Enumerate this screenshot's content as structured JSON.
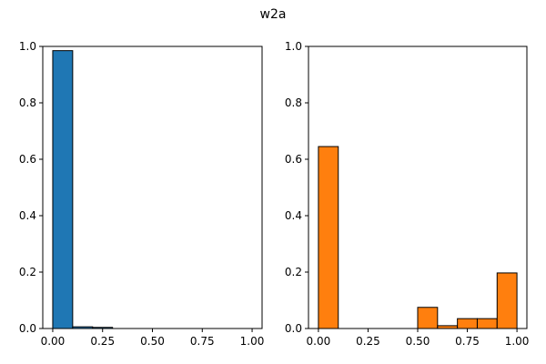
{
  "title": "w2a",
  "chart_data": [
    {
      "type": "bar",
      "bin_edges": [
        0.0,
        0.1,
        0.2,
        0.3,
        0.4,
        0.5,
        0.6,
        0.7,
        0.8,
        0.9,
        1.0
      ],
      "values": [
        0.985,
        0.006,
        0.004,
        0.0,
        0.0,
        0.0,
        0.0,
        0.0,
        0.0,
        0.0
      ],
      "xlim": [
        -0.05,
        1.05
      ],
      "ylim": [
        0,
        1.0
      ],
      "xticks": [
        "0.00",
        "0.25",
        "0.50",
        "0.75",
        "1.00"
      ],
      "yticks": [
        "0.0",
        "0.2",
        "0.4",
        "0.6",
        "0.8",
        "1.0"
      ],
      "color": "#1f77b4",
      "edgecolor": "#000000",
      "grid": false
    },
    {
      "type": "bar",
      "bin_edges": [
        0.0,
        0.1,
        0.2,
        0.3,
        0.4,
        0.5,
        0.6,
        0.7,
        0.8,
        0.9,
        1.0
      ],
      "values": [
        0.645,
        0.0,
        0.0,
        0.0,
        0.0,
        0.075,
        0.01,
        0.035,
        0.035,
        0.197
      ],
      "xlim": [
        -0.05,
        1.05
      ],
      "ylim": [
        0,
        1.0
      ],
      "xticks": [
        "0.00",
        "0.25",
        "0.50",
        "0.75",
        "1.00"
      ],
      "yticks": [
        "0.0",
        "0.2",
        "0.4",
        "0.6",
        "0.8",
        "1.0"
      ],
      "color": "#ff7f0e",
      "edgecolor": "#000000",
      "grid": false
    }
  ]
}
